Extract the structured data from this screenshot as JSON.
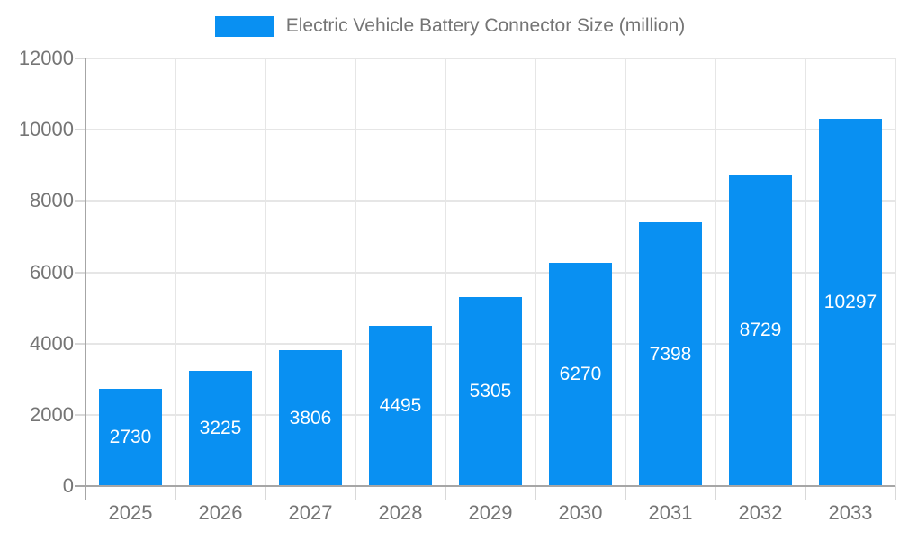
{
  "chart_data": {
    "type": "bar",
    "title": "Electric Vehicle Battery Connector Size (million)",
    "categories": [
      "2025",
      "2026",
      "2027",
      "2028",
      "2029",
      "2030",
      "2031",
      "2032",
      "2033"
    ],
    "values": [
      2730,
      3225,
      3806,
      4495,
      5305,
      6270,
      7398,
      8729,
      10297
    ],
    "xlabel": "",
    "ylabel": "",
    "ylim": [
      0,
      12000
    ],
    "yticks": [
      0,
      2000,
      4000,
      6000,
      8000,
      10000,
      12000
    ],
    "grid": true,
    "legend_position": "top-center",
    "colors": {
      "bar": "#0990f2",
      "grid": "#e6e6e6",
      "axis": "#a6a6a6",
      "tick": "#d9d9d9",
      "axis_text": "#757575",
      "value_label": "#ffffff",
      "background": "#ffffff"
    }
  }
}
